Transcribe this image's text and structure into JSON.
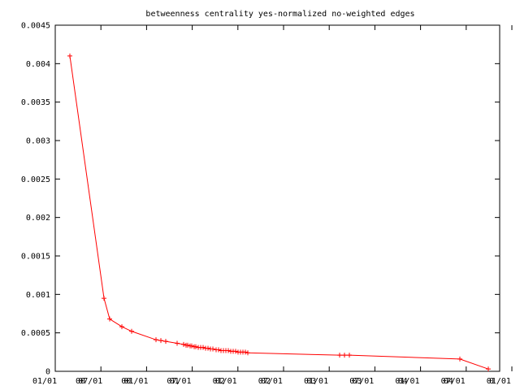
{
  "chart_data": {
    "type": "line",
    "title": "betweenness centrality yes-normalized no-weighted edges",
    "xlabel": "",
    "ylabel": "",
    "ylim": [
      0,
      0.0045
    ],
    "yticks": [
      {
        "value": 0,
        "label": "0"
      },
      {
        "value": 0.0005,
        "label": "0.0005"
      },
      {
        "value": 0.001,
        "label": "0.001"
      },
      {
        "value": 0.0015,
        "label": "0.0015"
      },
      {
        "value": 0.002,
        "label": "0.002"
      },
      {
        "value": 0.0025,
        "label": "0.0025"
      },
      {
        "value": 0.003,
        "label": "0.003"
      },
      {
        "value": 0.0035,
        "label": "0.0035"
      },
      {
        "value": 0.004,
        "label": "0.004"
      },
      {
        "value": 0.0045,
        "label": "0.0045"
      }
    ],
    "xtick_labels": [
      "01/01",
      "00",
      "07/01",
      "00",
      "01/01",
      "07/01",
      "01",
      "01/01",
      "02",
      "07/01",
      "02",
      "01/01",
      "03",
      "07/01",
      "03",
      "01/01",
      "04",
      "07/01",
      "04",
      "01/01",
      "0"
    ],
    "grid": false,
    "legend": "none",
    "colors": {
      "series": "#ff0000",
      "axes": "#000000",
      "background": "#ffffff"
    },
    "series": [
      {
        "values": [
          0.0041,
          0.00095,
          0.00068,
          0.00058,
          0.00052,
          0.00041,
          0.0004,
          0.00039,
          0.000365,
          0.00035,
          0.00034,
          0.00034,
          0.00033,
          0.00033,
          0.00032,
          0.00032,
          0.00031,
          0.00031,
          0.00031,
          0.0003,
          0.0003,
          0.00029,
          0.00029,
          0.00028,
          0.00028,
          0.00027,
          0.00027,
          0.00027,
          0.00027,
          0.00026,
          0.00026,
          0.00026,
          0.00025,
          0.00025,
          0.00025,
          0.00025,
          0.00024,
          0.00021,
          0.00021,
          0.00021,
          0.00016,
          3e-05
        ]
      }
    ]
  }
}
